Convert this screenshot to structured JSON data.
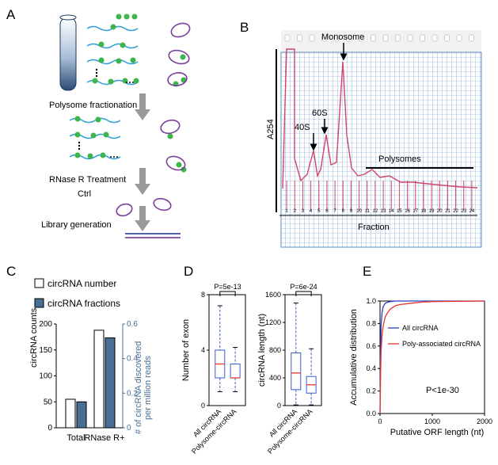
{
  "panels": {
    "A": "A",
    "B": "B",
    "C": "C",
    "D": "D",
    "E": "E"
  },
  "panel_a": {
    "step1": "Polysome fractionation",
    "step2": "RNase R Treatment",
    "ctrl": "Ctrl",
    "step3": "Library generation"
  },
  "panel_b": {
    "ylabel": "A254",
    "xlabel": "Fraction",
    "annot_monosome": "Monosome",
    "annot_60s": "60S",
    "annot_40s": "40S",
    "annot_polysomes": "Polysomes",
    "fraction_labels": [
      "1",
      "2",
      "3",
      "4",
      "5",
      "6",
      "7",
      "8",
      "9",
      "10",
      "11",
      "12",
      "13",
      "14",
      "15",
      "16",
      "17",
      "18",
      "19",
      "20",
      "21",
      "22",
      "23",
      "24"
    ]
  },
  "chart_data": [
    {
      "type": "bar",
      "panel": "C",
      "categories": [
        "Total",
        "RNase R+"
      ],
      "series": [
        {
          "name": "circRNA number",
          "values": [
            55,
            188
          ],
          "axis": "left"
        },
        {
          "name": "circRNA fractions",
          "values": [
            0.15,
            0.52
          ],
          "axis": "right"
        }
      ],
      "ylabel": "circRNA counts",
      "y2label_line1": "# of circRNA discovered",
      "y2label_line2": "per million reads",
      "ylim": [
        0,
        200
      ],
      "y2lim": [
        0,
        0.6
      ],
      "yticks": [
        "0",
        "50",
        "100",
        "150",
        "200"
      ],
      "y2ticks": [
        "0",
        "0.2",
        "0.4",
        "0.6"
      ],
      "colors": {
        "circRNA number": "#ffffff",
        "circRNA fractions": "#4a6f94"
      }
    },
    {
      "type": "box",
      "panel": "D-left",
      "categories": [
        "All circRNA",
        "Polysome-circRNA"
      ],
      "ylabel": "Number of exon",
      "ylim": [
        0,
        8
      ],
      "yticks": [
        "0",
        "4",
        "8"
      ],
      "pvalue": "P=5e-13",
      "boxes": [
        {
          "min": 1,
          "q1": 2,
          "median": 3,
          "q3": 4,
          "max": 7.2
        },
        {
          "min": 1,
          "q1": 2,
          "median": 2,
          "q3": 3,
          "max": 4.2
        }
      ]
    },
    {
      "type": "box",
      "panel": "D-right",
      "categories": [
        "All circRNA",
        "Polysome-circRNA"
      ],
      "ylabel": "circRNA length (nt)",
      "ylim": [
        0,
        1600
      ],
      "yticks": [
        "0",
        "400",
        "800",
        "1200",
        "1600"
      ],
      "pvalue": "P=6e-24",
      "boxes": [
        {
          "min": 10,
          "q1": 230,
          "median": 470,
          "q3": 760,
          "max": 1480
        },
        {
          "min": 10,
          "q1": 180,
          "median": 300,
          "q3": 420,
          "max": 820
        }
      ]
    },
    {
      "type": "line",
      "panel": "E",
      "xlabel": "Putative ORF length (nt)",
      "ylabel": "Accumulative distribution",
      "xlim": [
        0,
        2000
      ],
      "ylim": [
        0,
        1.0
      ],
      "xticks": [
        "0",
        "1000",
        "2000"
      ],
      "yticks": [
        "0.0",
        "0.2",
        "0.4",
        "0.6",
        "0.8",
        "1.0"
      ],
      "annotation": "P<1e-30",
      "series": [
        {
          "name": "All circRNA",
          "color": "#2a3cc8",
          "x": [
            0,
            10,
            20,
            40,
            60,
            100,
            150,
            200,
            300,
            400,
            600,
            2000
          ],
          "y": [
            0,
            0.55,
            0.78,
            0.9,
            0.95,
            0.98,
            0.99,
            0.995,
            1.0,
            1.0,
            1.0,
            1.0
          ]
        },
        {
          "name": "Poly-associated circRNA",
          "color": "#e6352b",
          "x": [
            0,
            10,
            20,
            40,
            60,
            100,
            150,
            200,
            300,
            400,
            600,
            800,
            1000,
            1500,
            2000
          ],
          "y": [
            0,
            0.35,
            0.55,
            0.7,
            0.78,
            0.86,
            0.9,
            0.93,
            0.96,
            0.97,
            0.98,
            0.99,
            0.995,
            0.998,
            1.0
          ]
        }
      ]
    }
  ]
}
